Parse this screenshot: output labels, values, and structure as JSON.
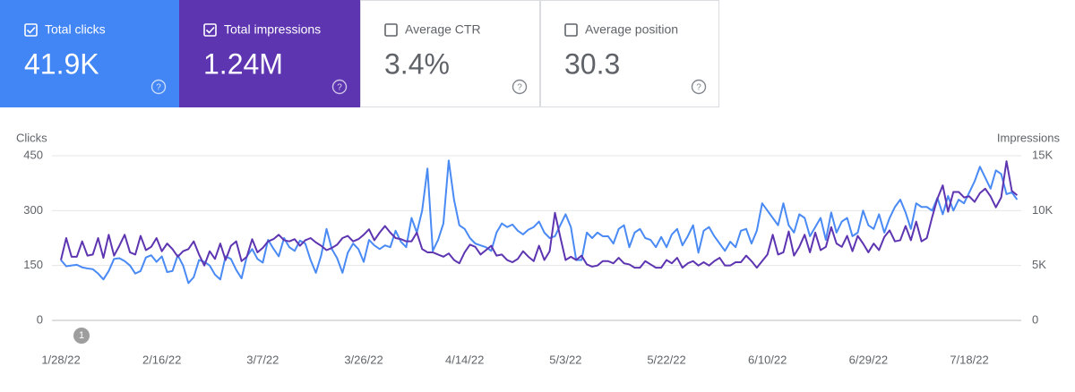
{
  "cards": [
    {
      "label": "Total clicks",
      "value": "41.9K",
      "checked": true,
      "color": "#4285f4"
    },
    {
      "label": "Total impressions",
      "value": "1.24M",
      "checked": true,
      "color": "#5e35b1"
    },
    {
      "label": "Average CTR",
      "value": "3.4%",
      "checked": false,
      "color": "#ffffff"
    },
    {
      "label": "Average position",
      "value": "30.3",
      "checked": false,
      "color": "#ffffff"
    }
  ],
  "chart_data": {
    "type": "line",
    "y_label": "Clicks",
    "y2_label": "Impressions",
    "annotation": "1",
    "categories": [
      "1/28/22",
      null,
      null,
      null,
      null,
      null,
      null,
      null,
      null,
      null,
      null,
      null,
      null,
      null,
      null,
      null,
      null,
      null,
      null,
      "2/16/22",
      null,
      null,
      null,
      null,
      null,
      null,
      null,
      null,
      null,
      null,
      null,
      null,
      null,
      null,
      null,
      null,
      null,
      null,
      "3/7/22",
      null,
      null,
      null,
      null,
      null,
      null,
      null,
      null,
      null,
      null,
      null,
      null,
      null,
      null,
      null,
      null,
      null,
      null,
      "3/26/22",
      null,
      null,
      null,
      null,
      null,
      null,
      null,
      null,
      null,
      null,
      null,
      null,
      null,
      null,
      null,
      null,
      null,
      null,
      "4/14/22",
      null,
      null,
      null,
      null,
      null,
      null,
      null,
      null,
      null,
      null,
      null,
      null,
      null,
      null,
      null,
      null,
      null,
      null,
      "5/3/22",
      null,
      null,
      null,
      null,
      null,
      null,
      null,
      null,
      null,
      null,
      null,
      null,
      null,
      null,
      null,
      null,
      null,
      null,
      "5/22/22",
      null,
      null,
      null,
      null,
      null,
      null,
      null,
      null,
      null,
      null,
      null,
      null,
      null,
      null,
      null,
      null,
      null,
      null,
      "6/10/22",
      null,
      null,
      null,
      null,
      null,
      null,
      null,
      null,
      null,
      null,
      null,
      null,
      null,
      null,
      null,
      null,
      null,
      null,
      "6/29/22",
      null,
      null,
      null,
      null,
      null,
      null,
      null,
      null,
      null,
      null,
      null,
      null,
      null,
      null,
      null,
      null,
      null,
      null,
      "7/18/22",
      null,
      null,
      null,
      null,
      null,
      null,
      null,
      null,
      null
    ],
    "series": [
      {
        "name": "Clicks",
        "color": "#4a8af4",
        "values": [
          165,
          148,
          150,
          152,
          145,
          142,
          140,
          128,
          112,
          135,
          168,
          170,
          162,
          150,
          128,
          135,
          172,
          178,
          160,
          175,
          132,
          135,
          178,
          150,
          102,
          118,
          165,
          160,
          150,
          125,
          112,
          175,
          168,
          138,
          115,
          175,
          195,
          168,
          158,
          220,
          196,
          175,
          225,
          200,
          190,
          218,
          210,
          165,
          130,
          178,
          250,
          195,
          170,
          130,
          185,
          210,
          195,
          160,
          220,
          205,
          195,
          205,
          200,
          245,
          215,
          200,
          280,
          240,
          300,
          415,
          190,
          220,
          265,
          437,
          330,
          260,
          250,
          225,
          210,
          205,
          200,
          190,
          240,
          265,
          255,
          262,
          245,
          235,
          248,
          255,
          270,
          240,
          225,
          230,
          260,
          290,
          255,
          165,
          165,
          240,
          225,
          240,
          230,
          230,
          210,
          250,
          260,
          200,
          240,
          250,
          225,
          220,
          200,
          228,
          200,
          235,
          250,
          205,
          230,
          260,
          185,
          245,
          255,
          230,
          210,
          190,
          215,
          200,
          245,
          250,
          210,
          245,
          320,
          300,
          280,
          260,
          320,
          260,
          240,
          290,
          280,
          230,
          255,
          280,
          220,
          295,
          240,
          270,
          280,
          230,
          240,
          300,
          260,
          250,
          290,
          240,
          280,
          310,
          330,
          295,
          250,
          320,
          310,
          310,
          300,
          335,
          290,
          340,
          300,
          330,
          320,
          350,
          380,
          420,
          390,
          360,
          410,
          400,
          345,
          350,
          330
        ]
      },
      {
        "name": "Impressions",
        "color": "#5e35b1",
        "axis": "y2",
        "values": [
          5500,
          7500,
          5800,
          5800,
          7200,
          5900,
          6000,
          7500,
          5700,
          7800,
          5900,
          6800,
          7800,
          6200,
          6000,
          7700,
          6400,
          6700,
          7500,
          6300,
          7000,
          6500,
          5800,
          6300,
          6500,
          7200,
          6000,
          5000,
          6300,
          5600,
          7000,
          5500,
          6800,
          7200,
          5400,
          5800,
          7400,
          6200,
          6600,
          7200,
          7400,
          7800,
          7300,
          7200,
          7400,
          6800,
          7300,
          7500,
          7100,
          6800,
          6400,
          6600,
          6900,
          7500,
          7700,
          7200,
          7400,
          7800,
          8300,
          7300,
          8000,
          8600,
          8000,
          7500,
          7400,
          7200,
          7200,
          8000,
          6500,
          6200,
          6200,
          6000,
          5800,
          6100,
          5500,
          5200,
          6200,
          6900,
          6700,
          6000,
          6400,
          6800,
          5900,
          6000,
          5500,
          5300,
          5600,
          6300,
          5800,
          5400,
          6800,
          5500,
          6300,
          9800,
          7600,
          5500,
          5800,
          5500,
          5900,
          5100,
          4900,
          5000,
          5400,
          5400,
          5200,
          5700,
          5200,
          5100,
          4800,
          4800,
          5400,
          5100,
          4800,
          4800,
          5500,
          5200,
          5700,
          4800,
          5200,
          5400,
          5000,
          5300,
          5000,
          5400,
          5700,
          5000,
          5000,
          5300,
          5300,
          5900,
          5400,
          4800,
          5400,
          6000,
          7800,
          6000,
          6200,
          8100,
          5900,
          6700,
          7800,
          6200,
          8000,
          6400,
          6700,
          8500,
          7000,
          6700,
          7700,
          6300,
          7700,
          7000,
          6200,
          7000,
          6400,
          7600,
          8200,
          7200,
          7300,
          8600,
          7300,
          9000,
          7200,
          7500,
          9400,
          11100,
          12300,
          9900,
          11700,
          11700,
          11200,
          11300,
          10800,
          11600,
          12000,
          11300,
          10300,
          11200,
          14500,
          11800,
          11400
        ]
      }
    ],
    "ylim": [
      0,
      450
    ],
    "yticks": [
      0,
      150,
      300,
      450
    ],
    "y2lim": [
      0,
      15000
    ],
    "y2ticks": [
      0,
      {
        "value": 5000,
        "label": "5K"
      },
      {
        "value": 10000,
        "label": "10K"
      },
      {
        "value": 15000,
        "label": "15K"
      }
    ],
    "grid": true
  }
}
